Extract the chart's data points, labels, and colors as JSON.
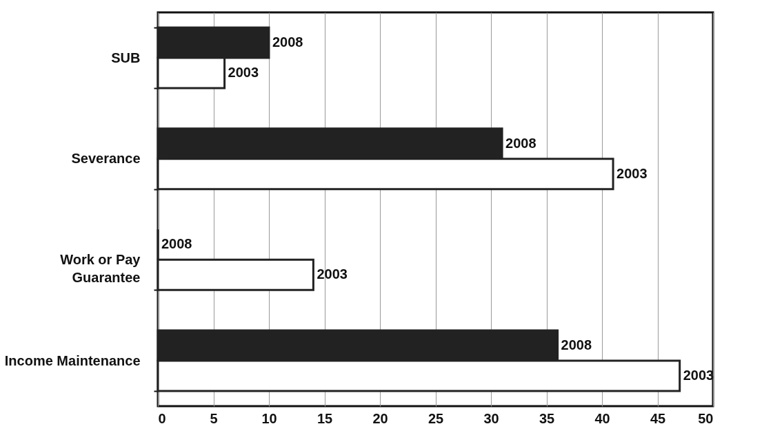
{
  "chart_data": {
    "type": "bar",
    "orientation": "horizontal",
    "categories": [
      "SUB",
      "Severance",
      "Work or Pay Guarantee",
      "Income Maintenance"
    ],
    "series": [
      {
        "name": "2008",
        "color": "#222222",
        "values": [
          10,
          31,
          0,
          36
        ]
      },
      {
        "name": "2003",
        "color": "#ffffff",
        "values": [
          6,
          41,
          14,
          47
        ]
      }
    ],
    "xlim": [
      0,
      50
    ],
    "xticks": [
      0,
      5,
      10,
      15,
      20,
      25,
      30,
      35,
      40,
      45,
      50
    ],
    "grid": "x",
    "legend": false
  }
}
